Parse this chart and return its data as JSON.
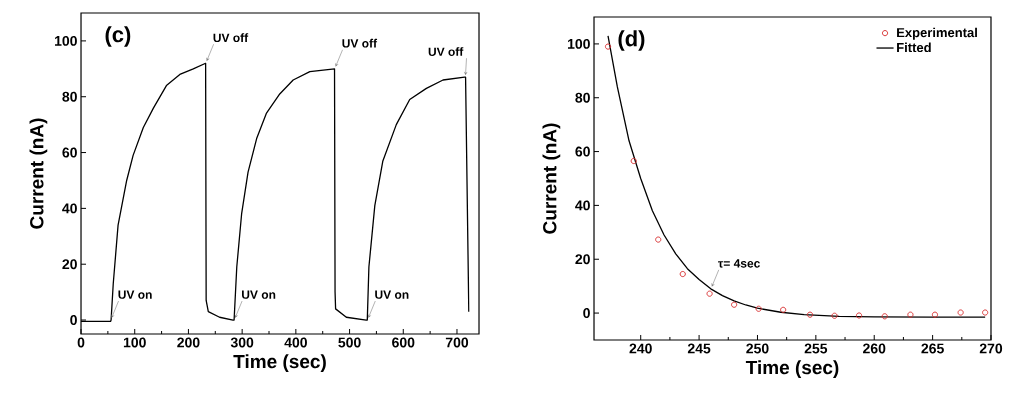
{
  "chart_data": [
    {
      "type": "line",
      "xlabel": "Time (sec)",
      "ylabel": "Current (nA)",
      "xlim": [
        0,
        741
      ],
      "ylim": [
        -5,
        110
      ],
      "xticks": [
        0,
        100,
        200,
        300,
        400,
        500,
        600,
        700
      ],
      "yticks": [
        0,
        20,
        40,
        60,
        80,
        100
      ],
      "x": [
        0,
        30,
        55,
        56,
        60,
        69,
        85,
        97,
        116,
        135,
        159,
        184,
        209,
        232,
        233,
        237,
        258,
        283,
        285,
        290,
        299,
        311,
        327,
        345,
        370,
        395,
        426,
        472,
        473,
        474,
        494,
        531,
        533,
        536,
        547,
        562,
        587,
        612,
        643,
        674,
        714,
        716,
        722
      ],
      "series": [
        {
          "color": "#000000",
          "values": [
            -0.5,
            -0.5,
            -0.5,
            0,
            13,
            34,
            50,
            59,
            69,
            76,
            84,
            88,
            90,
            92,
            7,
            3,
            1,
            0,
            0,
            19,
            38,
            53,
            65,
            74,
            81,
            86,
            89,
            90,
            10,
            4,
            1,
            0,
            0,
            19,
            41,
            57,
            70,
            79,
            83,
            86,
            87,
            87,
            3
          ]
        }
      ],
      "annotations": [
        "(c)",
        {
          "text": "UV on",
          "x": 55,
          "y": 0
        },
        {
          "text": "UV off",
          "x": 232,
          "y": 92
        },
        {
          "text": "UV on",
          "x": 285,
          "y": 0
        },
        {
          "text": "UV off",
          "x": 472,
          "y": 90
        },
        {
          "text": "UV on",
          "x": 533,
          "y": 0
        },
        {
          "text": "UV off",
          "x": 714,
          "y": 87
        }
      ]
    },
    {
      "type": "line",
      "xlabel": "Time (sec)",
      "ylabel": "Current (nA)",
      "xlim": [
        236,
        270
      ],
      "ylim": [
        -10,
        110
      ],
      "xticks": [
        240,
        245,
        250,
        255,
        260,
        265,
        270
      ],
      "yticks": [
        0,
        20,
        40,
        60,
        80,
        100
      ],
      "legend": "top right",
      "series": [
        {
          "name": "Experimental",
          "type": "scatter",
          "marker": "circle",
          "color": "#d62728",
          "x": [
            237.2,
            239.4,
            241.5,
            243.6,
            245.9,
            248,
            250.1,
            252.2,
            254.5,
            256.6,
            258.7,
            260.9,
            263.1,
            265.2,
            267.4,
            269.5
          ],
          "values": [
            99,
            56.5,
            27.3,
            14.5,
            7.2,
            3.1,
            1.6,
            1.2,
            -0.6,
            -1,
            -0.9,
            -1.2,
            -0.6,
            -0.6,
            0.2,
            0.2
          ]
        },
        {
          "name": "Fitted",
          "type": "line",
          "color": "#000000",
          "x": [
            237.2,
            238,
            239,
            240,
            241,
            242,
            243,
            244,
            245,
            246,
            247,
            248,
            249,
            250,
            252,
            254,
            257,
            260,
            265,
            269.5
          ],
          "values": [
            103,
            84,
            64,
            50,
            38,
            29,
            22,
            16.5,
            12.5,
            9,
            6.5,
            4.5,
            3,
            1.8,
            0.3,
            -0.6,
            -1.2,
            -1.4,
            -1.5,
            -1.5
          ]
        }
      ],
      "annotations": [
        "(d)",
        {
          "text": "τ= 4sec",
          "x": 246,
          "y": 9
        }
      ]
    }
  ]
}
